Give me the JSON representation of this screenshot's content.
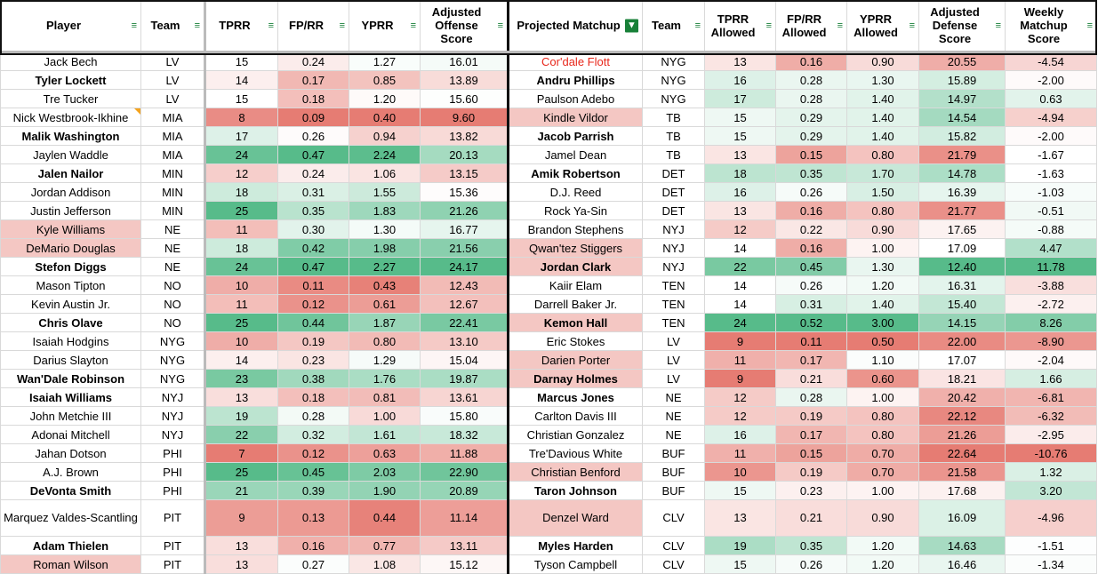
{
  "headers": {
    "player": "Player",
    "team": "Team",
    "tprr": "TPRR",
    "fprr": "FP/RR",
    "yprr": "YPRR",
    "adj_off": "Adjusted Offense Score",
    "matchup": "Projected Matchup",
    "def_team": "Team",
    "tprr_allowed": "TPRR Allowed",
    "fprr_allowed": "FP/RR Allowed",
    "yprr_allowed": "YPRR Allowed",
    "adj_def": "Adjusted Defense Score",
    "weekly": "Weekly Matchup Score"
  },
  "filter_icon": "filter-icon",
  "active_filter_icon": "filter-active-icon",
  "colors": {
    "red": "#e67c73",
    "white": "#ffffff",
    "green": "#57bb8a",
    "highlight": "#f4c7c3",
    "name_red": "#e8271b"
  },
  "rows": [
    {
      "player": "Jack Bech",
      "team": "LV",
      "tprr": "15",
      "fprr": "0.24",
      "yprr": "1.27",
      "adj_off": "16.01",
      "matchup": "Cor'dale Flott",
      "def_team": "NYG",
      "tprr_a": "13",
      "fprr_a": "0.16",
      "yprr_a": "0.90",
      "adj_def": "20.55",
      "weekly": "-4.54",
      "m_red": true
    },
    {
      "player": "Tyler Lockett",
      "team": "LV",
      "tprr": "14",
      "fprr": "0.17",
      "yprr": "0.85",
      "adj_off": "13.89",
      "matchup": "Andru Phillips",
      "def_team": "NYG",
      "tprr_a": "16",
      "fprr_a": "0.28",
      "yprr_a": "1.30",
      "adj_def": "15.89",
      "weekly": "-2.00",
      "p_bold": true,
      "m_bold": true
    },
    {
      "player": "Tre Tucker",
      "team": "LV",
      "tprr": "15",
      "fprr": "0.18",
      "yprr": "1.20",
      "adj_off": "15.60",
      "matchup": "Paulson Adebo",
      "def_team": "NYG",
      "tprr_a": "17",
      "fprr_a": "0.28",
      "yprr_a": "1.40",
      "adj_def": "14.97",
      "weekly": "0.63"
    },
    {
      "player": "Nick Westbrook-Ikhine",
      "team": "MIA",
      "tprr": "8",
      "fprr": "0.09",
      "yprr": "0.40",
      "adj_off": "9.60",
      "matchup": "Kindle Vildor",
      "def_team": "TB",
      "tprr_a": "15",
      "fprr_a": "0.29",
      "yprr_a": "1.40",
      "adj_def": "14.54",
      "weekly": "-4.94",
      "p_note": true,
      "m_hl": true
    },
    {
      "player": "Malik Washington",
      "team": "MIA",
      "tprr": "17",
      "fprr": "0.26",
      "yprr": "0.94",
      "adj_off": "13.82",
      "matchup": "Jacob Parrish",
      "def_team": "TB",
      "tprr_a": "15",
      "fprr_a": "0.29",
      "yprr_a": "1.40",
      "adj_def": "15.82",
      "weekly": "-2.00",
      "p_bold": true,
      "m_bold": true
    },
    {
      "player": "Jaylen Waddle",
      "team": "MIA",
      "tprr": "24",
      "fprr": "0.47",
      "yprr": "2.24",
      "adj_off": "20.13",
      "matchup": "Jamel Dean",
      "def_team": "TB",
      "tprr_a": "13",
      "fprr_a": "0.15",
      "yprr_a": "0.80",
      "adj_def": "21.79",
      "weekly": "-1.67"
    },
    {
      "player": "Jalen Nailor",
      "team": "MIN",
      "tprr": "12",
      "fprr": "0.24",
      "yprr": "1.06",
      "adj_off": "13.15",
      "matchup": "Amik Robertson",
      "def_team": "DET",
      "tprr_a": "18",
      "fprr_a": "0.35",
      "yprr_a": "1.70",
      "adj_def": "14.78",
      "weekly": "-1.63",
      "p_bold": true,
      "m_bold": true
    },
    {
      "player": "Jordan Addison",
      "team": "MIN",
      "tprr": "18",
      "fprr": "0.31",
      "yprr": "1.55",
      "adj_off": "15.36",
      "matchup": "D.J. Reed",
      "def_team": "DET",
      "tprr_a": "16",
      "fprr_a": "0.26",
      "yprr_a": "1.50",
      "adj_def": "16.39",
      "weekly": "-1.03"
    },
    {
      "player": "Justin Jefferson",
      "team": "MIN",
      "tprr": "25",
      "fprr": "0.35",
      "yprr": "1.83",
      "adj_off": "21.26",
      "matchup": "Rock Ya-Sin",
      "def_team": "DET",
      "tprr_a": "13",
      "fprr_a": "0.16",
      "yprr_a": "0.80",
      "adj_def": "21.77",
      "weekly": "-0.51"
    },
    {
      "player": "Kyle Williams",
      "team": "NE",
      "tprr": "11",
      "fprr": "0.30",
      "yprr": "1.30",
      "adj_off": "16.77",
      "matchup": "Brandon Stephens",
      "def_team": "NYJ",
      "tprr_a": "12",
      "fprr_a": "0.22",
      "yprr_a": "0.90",
      "adj_def": "17.65",
      "weekly": "-0.88",
      "p_hl": true
    },
    {
      "player": "DeMario Douglas",
      "team": "NE",
      "tprr": "18",
      "fprr": "0.42",
      "yprr": "1.98",
      "adj_off": "21.56",
      "matchup": "Qwan'tez Stiggers",
      "def_team": "NYJ",
      "tprr_a": "14",
      "fprr_a": "0.16",
      "yprr_a": "1.00",
      "adj_def": "17.09",
      "weekly": "4.47",
      "p_hl": true,
      "m_hl": true
    },
    {
      "player": "Stefon Diggs",
      "team": "NE",
      "tprr": "24",
      "fprr": "0.47",
      "yprr": "2.27",
      "adj_off": "24.17",
      "matchup": "Jordan Clark",
      "def_team": "NYJ",
      "tprr_a": "22",
      "fprr_a": "0.45",
      "yprr_a": "1.30",
      "adj_def": "12.40",
      "weekly": "11.78",
      "p_bold": true,
      "m_bold": true,
      "m_hl": true
    },
    {
      "player": "Mason Tipton",
      "team": "NO",
      "tprr": "10",
      "fprr": "0.11",
      "yprr": "0.43",
      "adj_off": "12.43",
      "matchup": "Kaiir Elam",
      "def_team": "TEN",
      "tprr_a": "14",
      "fprr_a": "0.26",
      "yprr_a": "1.20",
      "adj_def": "16.31",
      "weekly": "-3.88"
    },
    {
      "player": "Kevin Austin Jr.",
      "team": "NO",
      "tprr": "11",
      "fprr": "0.12",
      "yprr": "0.61",
      "adj_off": "12.67",
      "matchup": "Darrell Baker Jr.",
      "def_team": "TEN",
      "tprr_a": "14",
      "fprr_a": "0.31",
      "yprr_a": "1.40",
      "adj_def": "15.40",
      "weekly": "-2.72"
    },
    {
      "player": "Chris Olave",
      "team": "NO",
      "tprr": "25",
      "fprr": "0.44",
      "yprr": "1.87",
      "adj_off": "22.41",
      "matchup": "Kemon Hall",
      "def_team": "TEN",
      "tprr_a": "24",
      "fprr_a": "0.52",
      "yprr_a": "3.00",
      "adj_def": "14.15",
      "weekly": "8.26",
      "p_bold": true,
      "m_bold": true,
      "m_hl": true
    },
    {
      "player": "Isaiah Hodgins",
      "team": "NYG",
      "tprr": "10",
      "fprr": "0.19",
      "yprr": "0.80",
      "adj_off": "13.10",
      "matchup": "Eric Stokes",
      "def_team": "LV",
      "tprr_a": "9",
      "fprr_a": "0.11",
      "yprr_a": "0.50",
      "adj_def": "22.00",
      "weekly": "-8.90"
    },
    {
      "player": "Darius Slayton",
      "team": "NYG",
      "tprr": "14",
      "fprr": "0.23",
      "yprr": "1.29",
      "adj_off": "15.04",
      "matchup": "Darien Porter",
      "def_team": "LV",
      "tprr_a": "11",
      "fprr_a": "0.17",
      "yprr_a": "1.10",
      "adj_def": "17.07",
      "weekly": "-2.04",
      "m_hl": true
    },
    {
      "player": "Wan'Dale Robinson",
      "team": "NYG",
      "tprr": "23",
      "fprr": "0.38",
      "yprr": "1.76",
      "adj_off": "19.87",
      "matchup": "Darnay Holmes",
      "def_team": "LV",
      "tprr_a": "9",
      "fprr_a": "0.21",
      "yprr_a": "0.60",
      "adj_def": "18.21",
      "weekly": "1.66",
      "p_bold": true,
      "m_bold": true,
      "m_hl": true
    },
    {
      "player": "Isaiah Williams",
      "team": "NYJ",
      "tprr": "13",
      "fprr": "0.18",
      "yprr": "0.81",
      "adj_off": "13.61",
      "matchup": "Marcus Jones",
      "def_team": "NE",
      "tprr_a": "12",
      "fprr_a": "0.28",
      "yprr_a": "1.00",
      "adj_def": "20.42",
      "weekly": "-6.81",
      "p_bold": true,
      "m_bold": true
    },
    {
      "player": "John Metchie III",
      "team": "NYJ",
      "tprr": "19",
      "fprr": "0.28",
      "yprr": "1.00",
      "adj_off": "15.80",
      "matchup": "Carlton Davis III",
      "def_team": "NE",
      "tprr_a": "12",
      "fprr_a": "0.19",
      "yprr_a": "0.80",
      "adj_def": "22.12",
      "weekly": "-6.32"
    },
    {
      "player": "Adonai Mitchell",
      "team": "NYJ",
      "tprr": "22",
      "fprr": "0.32",
      "yprr": "1.61",
      "adj_off": "18.32",
      "matchup": "Christian Gonzalez",
      "def_team": "NE",
      "tprr_a": "16",
      "fprr_a": "0.17",
      "yprr_a": "0.80",
      "adj_def": "21.26",
      "weekly": "-2.95"
    },
    {
      "player": "Jahan Dotson",
      "team": "PHI",
      "tprr": "7",
      "fprr": "0.12",
      "yprr": "0.63",
      "adj_off": "11.88",
      "matchup": "Tre'Davious White",
      "def_team": "BUF",
      "tprr_a": "11",
      "fprr_a": "0.15",
      "yprr_a": "0.70",
      "adj_def": "22.64",
      "weekly": "-10.76"
    },
    {
      "player": "A.J. Brown",
      "team": "PHI",
      "tprr": "25",
      "fprr": "0.45",
      "yprr": "2.03",
      "adj_off": "22.90",
      "matchup": "Christian Benford",
      "def_team": "BUF",
      "tprr_a": "10",
      "fprr_a": "0.19",
      "yprr_a": "0.70",
      "adj_def": "21.58",
      "weekly": "1.32",
      "m_hl": true
    },
    {
      "player": "DeVonta Smith",
      "team": "PHI",
      "tprr": "21",
      "fprr": "0.39",
      "yprr": "1.90",
      "adj_off": "20.89",
      "matchup": "Taron Johnson",
      "def_team": "BUF",
      "tprr_a": "15",
      "fprr_a": "0.23",
      "yprr_a": "1.00",
      "adj_def": "17.68",
      "weekly": "3.20",
      "p_bold": true,
      "m_bold": true
    },
    {
      "player": "Marquez Valdes-Scantling",
      "team": "PIT",
      "tprr": "9",
      "fprr": "0.13",
      "yprr": "0.44",
      "adj_off": "11.14",
      "matchup": "Denzel Ward",
      "def_team": "CLV",
      "tprr_a": "13",
      "fprr_a": "0.21",
      "yprr_a": "0.90",
      "adj_def": "16.09",
      "weekly": "-4.96",
      "tall": true,
      "m_hl": true
    },
    {
      "player": "Adam Thielen",
      "team": "PIT",
      "tprr": "13",
      "fprr": "0.16",
      "yprr": "0.77",
      "adj_off": "13.11",
      "matchup": "Myles Harden",
      "def_team": "CLV",
      "tprr_a": "19",
      "fprr_a": "0.35",
      "yprr_a": "1.20",
      "adj_def": "14.63",
      "weekly": "-1.51",
      "p_bold": true,
      "m_bold": true
    },
    {
      "player": "Roman Wilson",
      "team": "PIT",
      "tprr": "13",
      "fprr": "0.27",
      "yprr": "1.08",
      "adj_off": "15.12",
      "matchup": "Tyson Campbell",
      "def_team": "CLV",
      "tprr_a": "15",
      "fprr_a": "0.26",
      "yprr_a": "1.20",
      "adj_def": "16.46",
      "weekly": "-1.34",
      "p_hl": true
    }
  ]
}
